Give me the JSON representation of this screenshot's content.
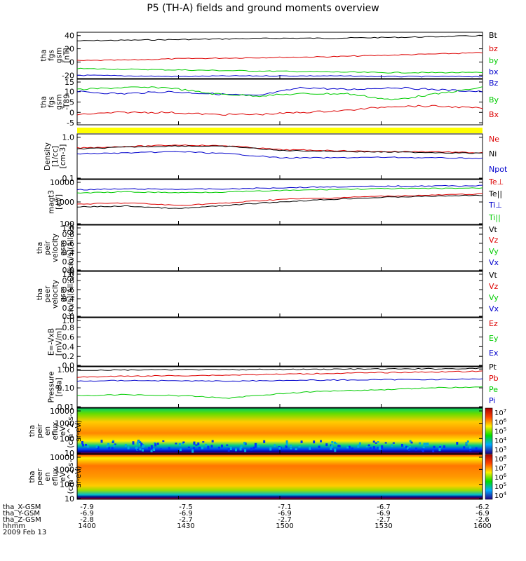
{
  "title": "P5 (TH-A) fields and ground moments overview",
  "colors": {
    "black": "#000000",
    "red": "#dd0000",
    "green": "#00cc00",
    "blue": "#0000cc",
    "yellow": "#ffff00"
  },
  "chart_data": [
    {
      "type": "line",
      "ylabel": [
        "tha",
        "fgs",
        "gsm",
        "[nT]"
      ],
      "ylim": [
        -25,
        45
      ],
      "ticks": [
        "40",
        "20",
        "0",
        "-20"
      ],
      "series": [
        {
          "name": "Bt",
          "color": "black",
          "values": [
            32,
            33,
            34,
            35,
            36,
            36,
            37,
            38,
            40
          ]
        },
        {
          "name": "bz",
          "color": "red",
          "values": [
            2,
            3,
            5,
            6,
            7,
            8,
            10,
            12,
            14
          ]
        },
        {
          "name": "by",
          "color": "green",
          "values": [
            -10,
            -11,
            -12,
            -13,
            -14,
            -15,
            -16,
            -16,
            -16
          ]
        },
        {
          "name": "bx",
          "color": "blue",
          "values": [
            -20,
            -21,
            -22,
            -21,
            -21,
            -21,
            -22,
            -22,
            -22
          ]
        }
      ]
    },
    {
      "type": "line",
      "ylabel": [
        "tha",
        "fgs",
        "gsm",
        "-T89"
      ],
      "ylim": [
        -6,
        16
      ],
      "ticks": [
        "15",
        "10",
        "5",
        "0",
        "-5"
      ],
      "series": [
        {
          "name": "Bz",
          "color": "blue",
          "values": [
            10,
            9,
            10,
            9,
            8,
            12,
            11,
            12,
            11,
            10
          ]
        },
        {
          "name": "By",
          "color": "green",
          "values": [
            11,
            12,
            12,
            9,
            8,
            9,
            9,
            6,
            9,
            12
          ]
        },
        {
          "name": "Bx",
          "color": "red",
          "values": [
            -1,
            0,
            0,
            -1,
            -1,
            0,
            1,
            3,
            3,
            2
          ]
        }
      ]
    },
    {
      "type": "bar",
      "ylabel": [],
      "series": [
        {
          "name": "",
          "color": "yellow",
          "values": [
            1
          ]
        }
      ]
    },
    {
      "type": "line",
      "ylabel": [
        "Density",
        "[1/cc]",
        "[cm-3]"
      ],
      "log": true,
      "ylim": [
        0.1,
        1.2
      ],
      "ticks": [
        "1.0",
        "0.1"
      ],
      "series": [
        {
          "name": "Ne",
          "color": "red",
          "values": [
            0.55,
            0.6,
            0.65,
            0.62,
            0.5,
            0.48,
            0.45,
            0.45,
            0.42
          ]
        },
        {
          "name": "Ni",
          "color": "black",
          "values": [
            0.52,
            0.58,
            0.62,
            0.6,
            0.48,
            0.46,
            0.44,
            0.43,
            0.41
          ]
        },
        {
          "name": "Npot",
          "color": "blue",
          "values": [
            0.4,
            0.42,
            0.45,
            0.4,
            0.32,
            0.32,
            0.33,
            0.32,
            0.31
          ]
        }
      ]
    },
    {
      "type": "line",
      "ylabel": [
        "magt3",
        "[eV]"
      ],
      "log": true,
      "ylim": [
        100,
        10000
      ],
      "ticks": [
        "10000",
        "1000",
        "100"
      ],
      "series": [
        {
          "name": "Te⊥",
          "color": "red",
          "values": [
            800,
            900,
            700,
            900,
            1300,
            1500,
            1800,
            2000,
            2300
          ]
        },
        {
          "name": "Te||",
          "color": "black",
          "values": [
            600,
            650,
            500,
            700,
            1000,
            1300,
            1600,
            1800,
            2000
          ]
        },
        {
          "name": "Ti⊥",
          "color": "blue",
          "values": [
            3500,
            3800,
            3700,
            3800,
            4300,
            4700,
            5000,
            5200,
            5300
          ]
        },
        {
          "name": "Ti||",
          "color": "green",
          "values": [
            2500,
            2800,
            2600,
            2800,
            3200,
            3600,
            3900,
            4000,
            4200
          ]
        }
      ]
    },
    {
      "type": "line",
      "ylabel": [
        "tha",
        "peir",
        "velocity",
        "gsm",
        "[km/s](All Qs)"
      ],
      "ylim": [
        0,
        1
      ],
      "ticks": [
        "1.0",
        "0.8",
        "0.6",
        "0.4",
        "0.2",
        "0.0"
      ],
      "series": [
        {
          "name": "Vt",
          "color": "black",
          "values": []
        },
        {
          "name": "Vz",
          "color": "red",
          "values": []
        },
        {
          "name": "Vy",
          "color": "green",
          "values": []
        },
        {
          "name": "Vx",
          "color": "blue",
          "values": []
        }
      ]
    },
    {
      "type": "line",
      "ylabel": [
        "tha",
        "peer",
        "velocity",
        "gsm",
        "[km/s](All Qs)"
      ],
      "ylim": [
        0,
        1
      ],
      "ticks": [
        "1.0",
        "0.8",
        "0.6",
        "0.4",
        "0.2",
        "0.0"
      ],
      "series": [
        {
          "name": "Vt",
          "color": "black",
          "values": []
        },
        {
          "name": "Vz",
          "color": "red",
          "values": []
        },
        {
          "name": "Vy",
          "color": "green",
          "values": []
        },
        {
          "name": "Vx",
          "color": "blue",
          "values": []
        }
      ]
    },
    {
      "type": "line",
      "ylabel": [
        "E=-VxB",
        "[mV/m]"
      ],
      "ylim": [
        0,
        1
      ],
      "ticks": [
        "1.0",
        "0.8",
        "0.6",
        "0.4",
        "0.2",
        "0.0"
      ],
      "series": [
        {
          "name": "Ez",
          "color": "red",
          "values": []
        },
        {
          "name": "Ey",
          "color": "green",
          "values": []
        },
        {
          "name": "Ex",
          "color": "blue",
          "values": []
        }
      ]
    },
    {
      "type": "line",
      "ylabel": [
        "Pressure",
        "[nPa]"
      ],
      "log": true,
      "ylim": [
        0.01,
        1.2
      ],
      "ticks": [
        "1.00",
        "0.10",
        "0.01"
      ],
      "series": [
        {
          "name": "Pt",
          "color": "black",
          "values": [
            0.8,
            0.82,
            0.85,
            0.85,
            0.87,
            0.9,
            0.92,
            0.94,
            0.98
          ]
        },
        {
          "name": "Pb",
          "color": "red",
          "values": [
            0.35,
            0.4,
            0.42,
            0.45,
            0.5,
            0.55,
            0.6,
            0.65,
            0.7
          ]
        },
        {
          "name": "Pe",
          "color": "green",
          "values": [
            0.04,
            0.045,
            0.04,
            0.03,
            0.05,
            0.07,
            0.08,
            0.1,
            0.11
          ]
        },
        {
          "name": "Pi",
          "color": "blue",
          "values": [
            0.22,
            0.24,
            0.23,
            0.22,
            0.24,
            0.25,
            0.26,
            0.27,
            0.28
          ]
        }
      ]
    },
    {
      "type": "heatmap",
      "ylabel": [
        "tha",
        "peir",
        "en",
        "eflux",
        "eV",
        "(cm^2-s-",
        "sr-eV)"
      ],
      "log": true,
      "ylim": [
        10,
        10000
      ],
      "ticks": [
        "10000",
        "1000",
        "100",
        "10"
      ],
      "colorbar": [
        "10^7",
        "10^6",
        "10^5",
        "10^4",
        "10^3"
      ]
    },
    {
      "type": "heatmap",
      "ylabel": [
        "tha",
        "peer",
        "en",
        "eflux",
        "eV",
        "(cm^2-s-",
        "sr-eV)"
      ],
      "log": true,
      "ylim": [
        10,
        10000
      ],
      "ticks": [
        "10000",
        "1000",
        "100",
        "10"
      ],
      "colorbar": [
        "10^8",
        "10^7",
        "10^6",
        "10^5",
        "10^4"
      ]
    }
  ],
  "xaxis": {
    "rows": [
      {
        "label": "tha_X-GSM",
        "values": [
          "-7.9",
          "-7.5",
          "-7.1",
          "-6.7",
          "-6.2"
        ]
      },
      {
        "label": "tha_Y-GSM",
        "values": [
          "-6.9",
          "-6.9",
          "-6.9",
          "-6.9",
          "-6.9"
        ]
      },
      {
        "label": "tha_Z-GSM",
        "values": [
          "-2.8",
          "-2.7",
          "-2.7",
          "-2.7",
          "-2.6"
        ]
      },
      {
        "label": "hhmm",
        "values": [
          "1400",
          "1430",
          "1500",
          "1530",
          "1600"
        ]
      }
    ],
    "date": "2009 Feb 13"
  }
}
